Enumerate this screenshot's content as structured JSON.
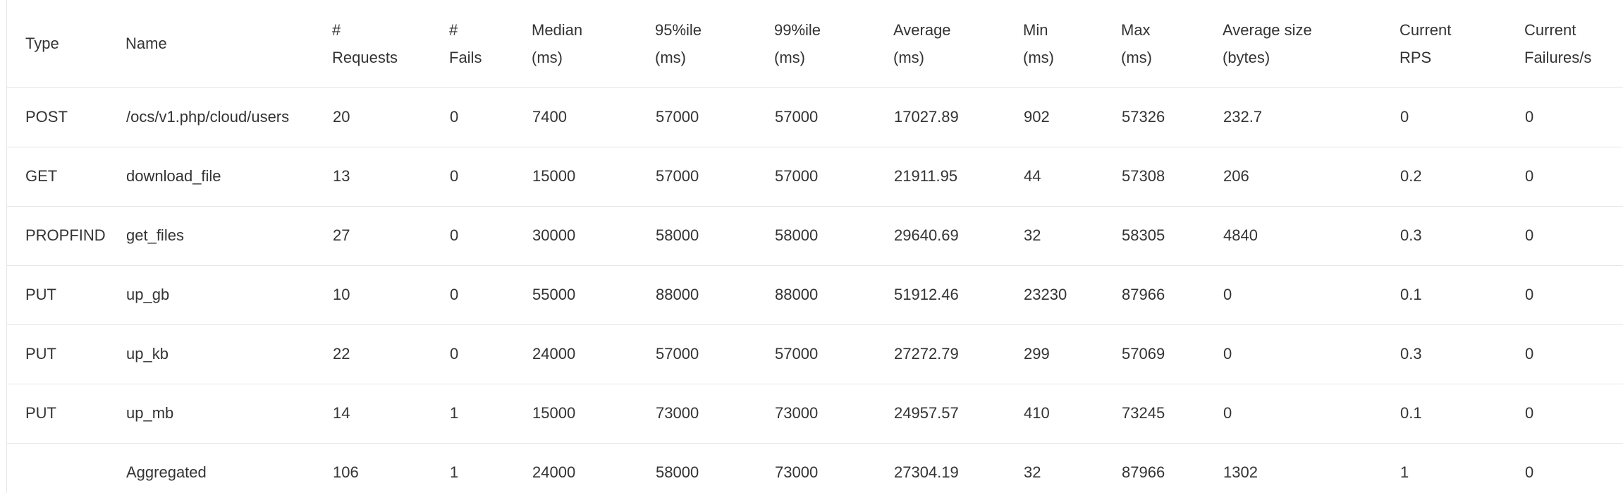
{
  "table": {
    "headers": {
      "type": {
        "line1": "Type",
        "line2": ""
      },
      "name": {
        "line1": "Name",
        "line2": ""
      },
      "requests": {
        "line1": "#",
        "line2": "Requests"
      },
      "fails": {
        "line1": "#",
        "line2": "Fails"
      },
      "median": {
        "line1": "Median",
        "line2": "(ms)"
      },
      "p95": {
        "line1": "95%ile",
        "line2": "(ms)"
      },
      "p99": {
        "line1": "99%ile",
        "line2": "(ms)"
      },
      "average": {
        "line1": "Average",
        "line2": "(ms)"
      },
      "min": {
        "line1": "Min",
        "line2": "(ms)"
      },
      "max": {
        "line1": "Max",
        "line2": "(ms)"
      },
      "avg_size": {
        "line1": "Average size",
        "line2": "(bytes)"
      },
      "rps": {
        "line1": "Current",
        "line2": "RPS"
      },
      "failures_s": {
        "line1": "Current",
        "line2": "Failures/s"
      }
    },
    "rows": [
      {
        "type": "POST",
        "name": "/ocs/v1.php/cloud/users",
        "requests": "20",
        "fails": "0",
        "median": "7400",
        "p95": "57000",
        "p99": "57000",
        "average": "17027.89",
        "min": "902",
        "max": "57326",
        "avg_size": "232.7",
        "rps": "0",
        "failures_s": "0"
      },
      {
        "type": "GET",
        "name": "download_file",
        "requests": "13",
        "fails": "0",
        "median": "15000",
        "p95": "57000",
        "p99": "57000",
        "average": "21911.95",
        "min": "44",
        "max": "57308",
        "avg_size": "206",
        "rps": "0.2",
        "failures_s": "0"
      },
      {
        "type": "PROPFIND",
        "name": "get_files",
        "requests": "27",
        "fails": "0",
        "median": "30000",
        "p95": "58000",
        "p99": "58000",
        "average": "29640.69",
        "min": "32",
        "max": "58305",
        "avg_size": "4840",
        "rps": "0.3",
        "failures_s": "0"
      },
      {
        "type": "PUT",
        "name": "up_gb",
        "requests": "10",
        "fails": "0",
        "median": "55000",
        "p95": "88000",
        "p99": "88000",
        "average": "51912.46",
        "min": "23230",
        "max": "87966",
        "avg_size": "0",
        "rps": "0.1",
        "failures_s": "0"
      },
      {
        "type": "PUT",
        "name": "up_kb",
        "requests": "22",
        "fails": "0",
        "median": "24000",
        "p95": "57000",
        "p99": "57000",
        "average": "27272.79",
        "min": "299",
        "max": "57069",
        "avg_size": "0",
        "rps": "0.3",
        "failures_s": "0"
      },
      {
        "type": "PUT",
        "name": "up_mb",
        "requests": "14",
        "fails": "1",
        "median": "15000",
        "p95": "73000",
        "p99": "73000",
        "average": "24957.57",
        "min": "410",
        "max": "73245",
        "avg_size": "0",
        "rps": "0.1",
        "failures_s": "0"
      }
    ],
    "aggregated": {
      "type": "",
      "name": "Aggregated",
      "requests": "106",
      "fails": "1",
      "median": "24000",
      "p95": "58000",
      "p99": "73000",
      "average": "27304.19",
      "min": "32",
      "max": "87966",
      "avg_size": "1302",
      "rps": "1",
      "failures_s": "0"
    }
  }
}
